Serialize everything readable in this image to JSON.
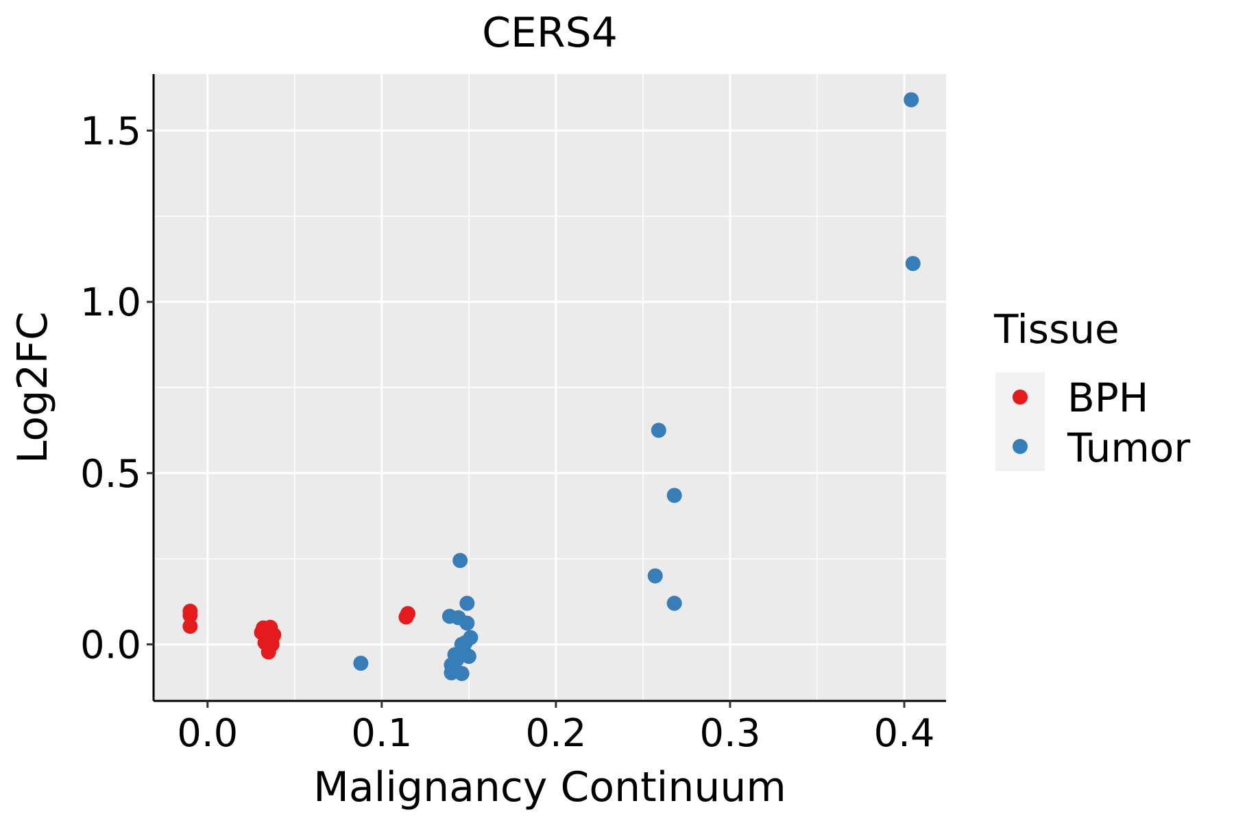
{
  "chart_data": {
    "type": "scatter",
    "title": "CERS4",
    "xlabel": "Malignancy Continuum",
    "ylabel": "Log2FC",
    "xlim": [
      -0.031,
      0.424
    ],
    "ylim": [
      -0.165,
      1.665
    ],
    "xticks": [
      0.0,
      0.1,
      0.2,
      0.3,
      0.4
    ],
    "xtick_labels": [
      "0.0",
      "0.1",
      "0.2",
      "0.3",
      "0.4"
    ],
    "yticks": [
      0.0,
      0.5,
      1.0,
      1.5
    ],
    "ytick_labels": [
      "0.0",
      "0.5",
      "1.0",
      "1.5"
    ],
    "grid": true,
    "legend": {
      "title": "Tissue",
      "position": "right",
      "entries": [
        {
          "label": "BPH",
          "color": "#e41a1c"
        },
        {
          "label": "Tumor",
          "color": "#377eb8"
        }
      ]
    },
    "series": [
      {
        "name": "BPH",
        "color": "#e41a1c",
        "points": [
          {
            "x": -0.01,
            "y": 0.097
          },
          {
            "x": -0.01,
            "y": 0.085
          },
          {
            "x": -0.01,
            "y": 0.053
          },
          {
            "x": 0.031,
            "y": 0.035
          },
          {
            "x": 0.032,
            "y": 0.048
          },
          {
            "x": 0.033,
            "y": 0.03
          },
          {
            "x": 0.033,
            "y": 0.005
          },
          {
            "x": 0.034,
            "y": 0.02
          },
          {
            "x": 0.035,
            "y": -0.022
          },
          {
            "x": 0.035,
            "y": 0.01
          },
          {
            "x": 0.036,
            "y": 0.05
          },
          {
            "x": 0.036,
            "y": 0.04
          },
          {
            "x": 0.037,
            "y": 0.0
          },
          {
            "x": 0.037,
            "y": 0.018
          },
          {
            "x": 0.038,
            "y": 0.028
          },
          {
            "x": 0.114,
            "y": 0.08
          },
          {
            "x": 0.115,
            "y": 0.09
          }
        ]
      },
      {
        "name": "Tumor",
        "color": "#377eb8",
        "points": [
          {
            "x": 0.088,
            "y": -0.055
          },
          {
            "x": 0.139,
            "y": 0.082
          },
          {
            "x": 0.14,
            "y": -0.06
          },
          {
            "x": 0.14,
            "y": -0.083
          },
          {
            "x": 0.142,
            "y": -0.03
          },
          {
            "x": 0.143,
            "y": -0.045
          },
          {
            "x": 0.144,
            "y": 0.078
          },
          {
            "x": 0.145,
            "y": 0.245
          },
          {
            "x": 0.146,
            "y": 0.0
          },
          {
            "x": 0.146,
            "y": -0.085
          },
          {
            "x": 0.147,
            "y": -0.02
          },
          {
            "x": 0.148,
            "y": 0.005
          },
          {
            "x": 0.149,
            "y": 0.12
          },
          {
            "x": 0.149,
            "y": 0.062
          },
          {
            "x": 0.15,
            "y": -0.035
          },
          {
            "x": 0.151,
            "y": 0.02
          },
          {
            "x": 0.257,
            "y": 0.2
          },
          {
            "x": 0.259,
            "y": 0.625
          },
          {
            "x": 0.268,
            "y": 0.12
          },
          {
            "x": 0.268,
            "y": 0.435
          },
          {
            "x": 0.404,
            "y": 1.59
          },
          {
            "x": 0.405,
            "y": 1.112
          }
        ]
      }
    ]
  }
}
